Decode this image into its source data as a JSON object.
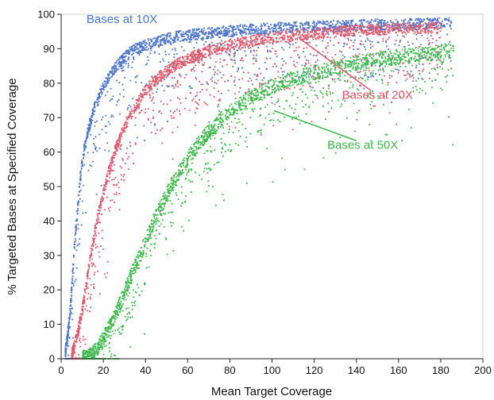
{
  "chart_data": {
    "type": "scatter",
    "title": "",
    "xlabel": "Mean Target Coverage",
    "ylabel": "% Targeted Bases at Specified Coverage",
    "xlim": [
      0,
      200
    ],
    "ylim": [
      0,
      100
    ],
    "xticks": [
      "0",
      "20",
      "40",
      "60",
      "80",
      "100",
      "120",
      "140",
      "160",
      "180",
      "200"
    ],
    "yticks": [
      "0",
      "10",
      "20",
      "30",
      "40",
      "50",
      "60",
      "70",
      "80",
      "90",
      "100"
    ],
    "grid": false,
    "legend": "none",
    "series": [
      {
        "name": "Bases at 10X",
        "color": "#4a74c9",
        "x": [
          2,
          3,
          4,
          5,
          6,
          7,
          8,
          9,
          10,
          11,
          12,
          13,
          14,
          15,
          16,
          18,
          20,
          22,
          24,
          26,
          28,
          30,
          32,
          34,
          36,
          38,
          40,
          42,
          45,
          48,
          50,
          55,
          60,
          65,
          70,
          75,
          80,
          85,
          90,
          95,
          100,
          110,
          120,
          130,
          140,
          150,
          160,
          170,
          180,
          185
        ],
        "y": [
          2,
          6,
          12,
          20,
          30,
          38,
          45,
          52,
          57,
          61,
          64,
          67,
          69,
          71,
          73,
          76,
          79,
          81,
          83,
          85,
          86,
          87.5,
          88.5,
          89.5,
          90,
          90.5,
          91,
          91.5,
          92,
          92.5,
          93,
          93.5,
          94,
          94.3,
          94.6,
          94.9,
          95.2,
          95.4,
          95.6,
          95.8,
          96,
          96.2,
          96.4,
          96.6,
          96.8,
          97,
          97,
          97.2,
          97.4,
          97.5
        ]
      },
      {
        "name": "Bases at 20X",
        "color": "#e0566b",
        "x": [
          5,
          6,
          8,
          10,
          12,
          14,
          16,
          18,
          20,
          22,
          24,
          26,
          28,
          30,
          32,
          35,
          38,
          40,
          45,
          50,
          55,
          60,
          65,
          70,
          75,
          80,
          85,
          90,
          95,
          100,
          110,
          120,
          130,
          140,
          150,
          160,
          170,
          180
        ],
        "y": [
          1,
          3,
          8,
          14,
          22,
          30,
          37,
          43,
          48,
          53,
          57,
          61,
          64,
          67,
          70,
          73,
          76,
          78,
          81,
          83.5,
          85.5,
          87,
          88.3,
          89.3,
          90.2,
          91,
          91.7,
          92.3,
          92.8,
          93.2,
          93.8,
          94.3,
          94.8,
          95.2,
          95.5,
          95.8,
          96,
          96.2
        ]
      },
      {
        "name": "Bases at 50X",
        "color": "#3cb84a",
        "x": [
          10,
          12,
          14,
          16,
          18,
          20,
          22,
          25,
          28,
          30,
          33,
          36,
          40,
          44,
          48,
          52,
          56,
          60,
          64,
          68,
          72,
          76,
          80,
          85,
          90,
          95,
          100,
          105,
          110,
          115,
          120,
          125,
          130,
          135,
          140,
          145,
          150,
          160,
          170,
          180,
          186
        ],
        "y": [
          0,
          0.5,
          1,
          2,
          4,
          6,
          8,
          12,
          16,
          19,
          24,
          28,
          34,
          40,
          45,
          50,
          54,
          58,
          61.5,
          64.5,
          67,
          69.5,
          71.5,
          74,
          76,
          77.5,
          79,
          80.2,
          81.3,
          82.2,
          83,
          83.8,
          84.5,
          85.2,
          85.8,
          86.3,
          86.8,
          87.6,
          88.3,
          89,
          89.4
        ]
      }
    ],
    "annotations": [
      {
        "text": "Bases at 10X",
        "series": 0,
        "label_x": 12,
        "label_y": 97.5
      },
      {
        "text": "Bases at 20X",
        "series": 1,
        "label_x": 150,
        "label_y": 75.5,
        "arrow_to_x": 113,
        "arrow_to_y": 93
      },
      {
        "text": "Bases at 50X",
        "series": 2,
        "label_x": 143,
        "label_y": 61,
        "arrow_to_x": 101,
        "arrow_to_y": 72
      }
    ]
  }
}
